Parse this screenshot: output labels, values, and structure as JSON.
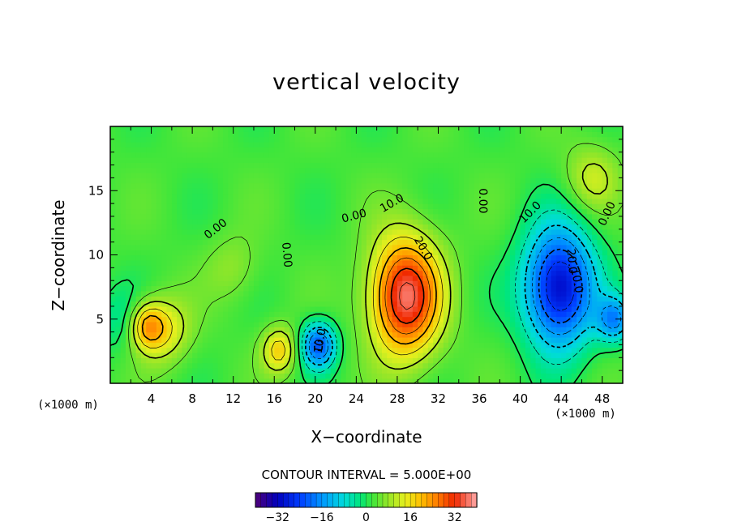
{
  "chart_data": {
    "type": "heatmap",
    "title": "vertical velocity",
    "xlabel": "X−coordinate",
    "ylabel": "Z−coordinate",
    "x_unit_left": "(×1000 m)",
    "x_unit_right": "(×1000 m)",
    "xlim": [
      0,
      50
    ],
    "ylim": [
      0,
      20
    ],
    "x_ticks": [
      4,
      8,
      12,
      16,
      20,
      24,
      28,
      32,
      36,
      40,
      44,
      48
    ],
    "y_ticks": [
      5,
      10,
      15
    ],
    "contour_interval_label": "CONTOUR INTERVAL = 5.000E+00",
    "contour_interval": 5,
    "colorbar": {
      "range": [
        -40,
        40
      ],
      "ticks": [
        -32,
        -16,
        0,
        16,
        32
      ],
      "tick_labels": [
        "−32",
        "−16",
        "0",
        "16",
        "32"
      ]
    },
    "contour_labels": [
      {
        "text": "0.00",
        "x": 10.3,
        "z": 12.0,
        "angle": -38
      },
      {
        "text": "0.00",
        "x": 17.2,
        "z": 10.0,
        "angle": 85
      },
      {
        "text": "0.00",
        "x": 23.8,
        "z": 13.0,
        "angle": -15
      },
      {
        "text": "10.0",
        "x": 27.5,
        "z": 14.0,
        "angle": -30
      },
      {
        "text": "20.0",
        "x": 30.5,
        "z": 10.5,
        "angle": 60
      },
      {
        "text": "0.00",
        "x": 36.3,
        "z": 14.2,
        "angle": 90
      },
      {
        "text": "10.0",
        "x": 41.0,
        "z": 13.3,
        "angle": -45
      },
      {
        "text": "10.0",
        "x": 20.5,
        "z": 3.3,
        "angle": -80
      },
      {
        "text": "20.0",
        "x": 45.0,
        "z": 9.5,
        "angle": 85
      },
      {
        "text": "10.0",
        "x": 45.5,
        "z": 8.0,
        "angle": 80
      },
      {
        "text": "0.00",
        "x": 48.5,
        "z": 13.2,
        "angle": -65
      }
    ],
    "field_features": [
      {
        "kind": "updraft",
        "x": 28.8,
        "z": 6.8,
        "peak": 34
      },
      {
        "kind": "updraft",
        "x": 3.5,
        "z": 4.5,
        "peak": 16
      },
      {
        "kind": "updraft",
        "x": 5.2,
        "z": 4.2,
        "peak": 12
      },
      {
        "kind": "updraft",
        "x": 16.5,
        "z": 2.6,
        "peak": 15
      },
      {
        "kind": "updraft",
        "x": 12.0,
        "z": 9.0,
        "peak": 5
      },
      {
        "kind": "updraft",
        "x": 47.0,
        "z": 16.0,
        "peak": 9
      },
      {
        "kind": "downdraft",
        "x": 20.3,
        "z": 3.0,
        "peak": -24
      },
      {
        "kind": "downdraft",
        "x": 43.8,
        "z": 7.5,
        "peak": -34
      },
      {
        "kind": "downdraft",
        "x": 49.2,
        "z": 5.0,
        "peak": -18
      },
      {
        "kind": "downdraft",
        "x": 1.0,
        "z": 5.0,
        "peak": -6
      }
    ]
  }
}
